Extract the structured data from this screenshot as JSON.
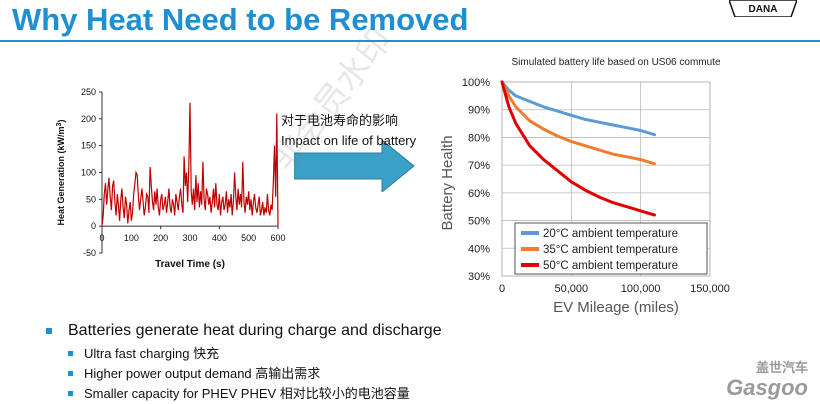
{
  "slide": {
    "title": "Why Heat Need to be Removed",
    "logo_text": "DANA",
    "arrow_text_zh": "对于电池寿命的影响",
    "arrow_text_en": "Impact on life of battery",
    "watermark_text": "非会员水印",
    "gasgoo_cn": "盖世汽车",
    "gasgoo_en": "Gasgoo"
  },
  "bullets": [
    {
      "level": 1,
      "text": "Batteries generate heat during charge and discharge"
    },
    {
      "level": 2,
      "text": "Ultra fast charging  快充"
    },
    {
      "level": 2,
      "text": "Higher power output demand 高输出需求"
    },
    {
      "level": 2,
      "text": "Smaller capacity for PHEV  PHEV 相对比较小的电池容量"
    }
  ],
  "colors": {
    "title": "#1e8fd0",
    "heat": "#c00000",
    "arrow": "#3aa0c8",
    "s20": "#5b9bd5",
    "s35": "#ed7d31",
    "s50": "#e00000"
  },
  "chart_data": [
    {
      "type": "line",
      "title": "",
      "xlabel": "Travel Time (s)",
      "ylabel": "Heat Generation (kW/m³)",
      "xlim": [
        0,
        600
      ],
      "ylim": [
        -50,
        250
      ],
      "xticks": [
        0,
        200,
        400,
        600
      ],
      "xtick_labels": [
        "0",
        "200",
        "400",
        "600"
      ],
      "xticks_minor": [
        100,
        300,
        500
      ],
      "xtick_labels_minor": [
        "100",
        "300",
        "500"
      ],
      "yticks": [
        -50,
        0,
        50,
        100,
        150,
        200,
        250
      ],
      "ytick_labels": [
        "-50",
        "0",
        "50",
        "100",
        "150",
        "200",
        "250"
      ],
      "series": [
        {
          "x": [
            0,
            4,
            8,
            12,
            16,
            20,
            24,
            28,
            32,
            36,
            40,
            44,
            48,
            52,
            56,
            60,
            64,
            68,
            72,
            76,
            80,
            84,
            88,
            92,
            96,
            100,
            104,
            108,
            112,
            116,
            120,
            124,
            128,
            132,
            136,
            140,
            144,
            148,
            152,
            156,
            160,
            164,
            168,
            172,
            176,
            180,
            184,
            188,
            192,
            196,
            200,
            204,
            208,
            212,
            216,
            220,
            224,
            228,
            232,
            236,
            240,
            244,
            248,
            252,
            256,
            260,
            264,
            268,
            272,
            276,
            280,
            284,
            288,
            292,
            296,
            300,
            304,
            308,
            312,
            316,
            320,
            324,
            328,
            332,
            336,
            340,
            344,
            348,
            352,
            356,
            360,
            364,
            368,
            372,
            376,
            380,
            384,
            388,
            392,
            396,
            400,
            404,
            408,
            412,
            416,
            420,
            424,
            428,
            432,
            436,
            440,
            444,
            448,
            452,
            456,
            460,
            464,
            468,
            472,
            476,
            480,
            484,
            488,
            492,
            496,
            500,
            504,
            508,
            512,
            516,
            520,
            524,
            528,
            532,
            536,
            540,
            544,
            548,
            552,
            556,
            560,
            564,
            568,
            572,
            576,
            580,
            584,
            588,
            592,
            596,
            600
          ],
          "y": [
            0,
            20,
            60,
            80,
            40,
            70,
            90,
            55,
            30,
            75,
            85,
            45,
            20,
            60,
            40,
            10,
            50,
            70,
            35,
            15,
            55,
            40,
            5,
            30,
            45,
            10,
            25,
            60,
            80,
            100,
            95,
            55,
            30,
            50,
            70,
            45,
            20,
            35,
            60,
            55,
            25,
            110,
            75,
            45,
            30,
            65,
            40,
            70,
            35,
            20,
            50,
            60,
            30,
            40,
            55,
            25,
            45,
            70,
            35,
            25,
            50,
            40,
            20,
            60,
            45,
            30,
            55,
            70,
            40,
            25,
            130,
            75,
            100,
            45,
            110,
            230,
            65,
            40,
            70,
            30,
            95,
            45,
            80,
            35,
            65,
            40,
            120,
            50,
            30,
            70,
            60,
            40,
            55,
            25,
            45,
            70,
            35,
            80,
            40,
            30,
            60,
            20,
            45,
            55,
            30,
            40,
            65,
            25,
            50,
            35,
            60,
            20,
            45,
            100,
            55,
            30,
            70,
            40,
            60,
            35,
            120,
            45,
            25,
            55,
            40,
            65,
            30,
            50,
            20,
            45,
            60,
            35,
            25,
            40,
            55,
            20,
            30,
            45,
            20,
            35,
            25,
            60,
            30,
            20,
            40,
            30,
            80,
            150,
            55,
            210,
            0
          ]
        }
      ]
    },
    {
      "type": "line",
      "title": "Simulated battery life based on US06 commute",
      "xlabel": "EV Mileage (miles)",
      "ylabel": "Battery Health",
      "xlim": [
        0,
        150000
      ],
      "ylim": [
        30,
        100
      ],
      "xticks": [
        0,
        50000,
        100000,
        150000
      ],
      "xtick_labels": [
        "0",
        "50,000",
        "100,000",
        "150,000"
      ],
      "yticks": [
        30,
        40,
        50,
        60,
        70,
        80,
        90,
        100
      ],
      "ytick_labels": [
        "30%",
        "40%",
        "50%",
        "60%",
        "70%",
        "80%",
        "90%",
        "100%"
      ],
      "legend_position": "bottom-right",
      "grid": true,
      "series": [
        {
          "name": "20°C ambient temperature",
          "color": "#5b9bd5",
          "x": [
            0,
            5000,
            10000,
            20000,
            30000,
            40000,
            50000,
            60000,
            70000,
            80000,
            90000,
            100000,
            110000
          ],
          "y": [
            100,
            97,
            95,
            93,
            91,
            89.5,
            88,
            86.5,
            85.5,
            84.5,
            83.5,
            82.5,
            81
          ]
        },
        {
          "name": "35°C ambient temperature",
          "color": "#ed7d31",
          "x": [
            0,
            5000,
            10000,
            20000,
            30000,
            40000,
            50000,
            60000,
            70000,
            80000,
            90000,
            100000,
            110000
          ],
          "y": [
            100,
            95,
            91,
            86,
            83,
            80.5,
            78.5,
            77,
            75.5,
            74,
            73,
            72,
            70.5
          ]
        },
        {
          "name": "50°C ambient temperature",
          "color": "#e00000",
          "x": [
            0,
            5000,
            10000,
            20000,
            30000,
            40000,
            50000,
            60000,
            70000,
            80000,
            90000,
            100000,
            110000
          ],
          "y": [
            100,
            91,
            85,
            77,
            72,
            68,
            64,
            61,
            58.5,
            56.5,
            55,
            53.5,
            52
          ]
        }
      ]
    }
  ]
}
